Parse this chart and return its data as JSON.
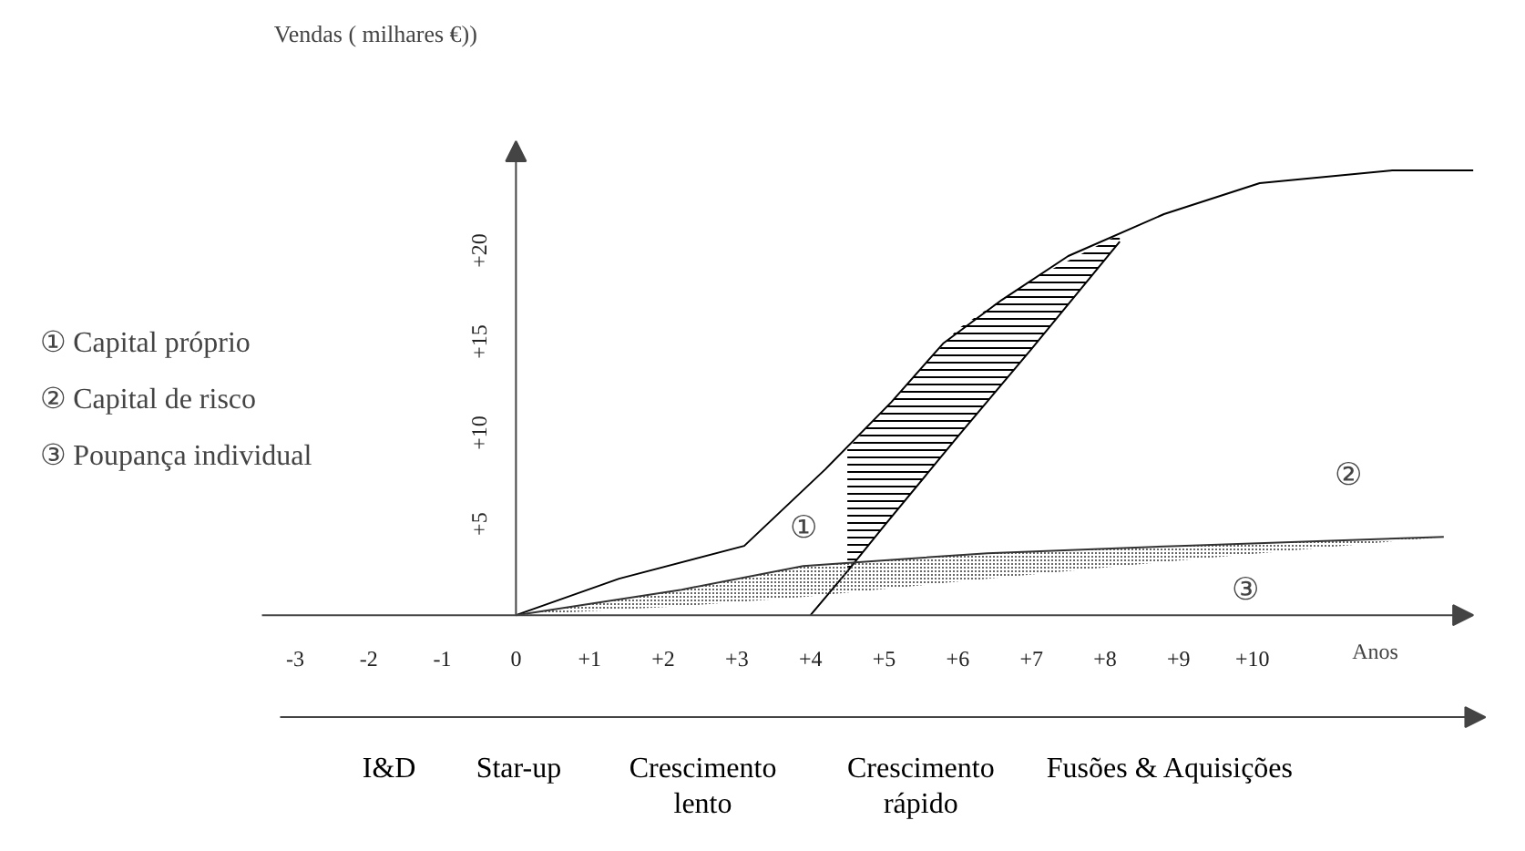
{
  "chart_data": {
    "type": "line",
    "xlabel": "Anos",
    "ylabel": "Vendas ( milhares €))",
    "xlim": [
      -3.45,
      13.0
    ],
    "ylim": [
      0,
      26
    ],
    "xticks": [
      -3,
      -2,
      -1,
      0,
      {
        "value": 1,
        "label": "+1"
      },
      {
        "value": 2,
        "label": "+2"
      },
      {
        "value": 3,
        "label": "+3"
      },
      {
        "value": 4,
        "label": "+4"
      },
      {
        "value": 5,
        "label": "+5"
      },
      {
        "value": 6,
        "label": "+6"
      },
      {
        "value": 7,
        "label": "+7"
      },
      {
        "value": 8,
        "label": "+8"
      },
      {
        "value": 9,
        "label": "+9"
      },
      {
        "value": 10,
        "label": "+10"
      }
    ],
    "yticks": [
      {
        "value": 5,
        "label": "+5"
      },
      {
        "value": 10,
        "label": "+10"
      },
      {
        "value": 15,
        "label": "+15"
      },
      {
        "value": 20,
        "label": "+20"
      }
    ],
    "series": [
      {
        "color": "#000000",
        "x": [
          0,
          1.4,
          3.1,
          4.2,
          5.1,
          5.8,
          6.6,
          7.5,
          8.8,
          10.1,
          11.9,
          13.0
        ],
        "values": [
          0,
          2.0,
          3.8,
          8.0,
          11.7,
          14.9,
          17.3,
          19.7,
          22.0,
          23.7,
          24.4,
          24.4
        ]
      },
      {
        "color": "#000000",
        "x": [
          4.0,
          4.5,
          5.0,
          6.0,
          7.0,
          8.2
        ],
        "values": [
          0,
          2.4,
          4.9,
          9.8,
          14.6,
          20.5
        ],
        "lower": [
          null,
          2.4,
          4.9,
          9.8,
          14.6,
          20.5
        ],
        "upper": [
          null,
          9.1,
          11.3,
          15.7,
          18.4,
          20.9
        ]
      },
      {
        "color": "#333333",
        "x": [
          0,
          2.25,
          3.9,
          6.4,
          9.0,
          12.6
        ],
        "values": [
          0,
          1.4,
          2.7,
          3.4,
          3.8,
          4.3
        ],
        "lower": [
          0,
          0.5,
          1.0,
          2.0,
          3.0,
          4.3
        ],
        "upper": [
          0,
          1.4,
          2.7,
          3.4,
          3.8,
          4.3
        ]
      }
    ],
    "annotations": [
      "① Capital próprio",
      "② Capital de risco",
      "③ Poupança individual",
      "I&D",
      "Star-up",
      "Crescimento\nlento",
      "Crescimento\nrápido",
      "Fusões & Aquisições",
      "①",
      "②",
      "③"
    ]
  }
}
